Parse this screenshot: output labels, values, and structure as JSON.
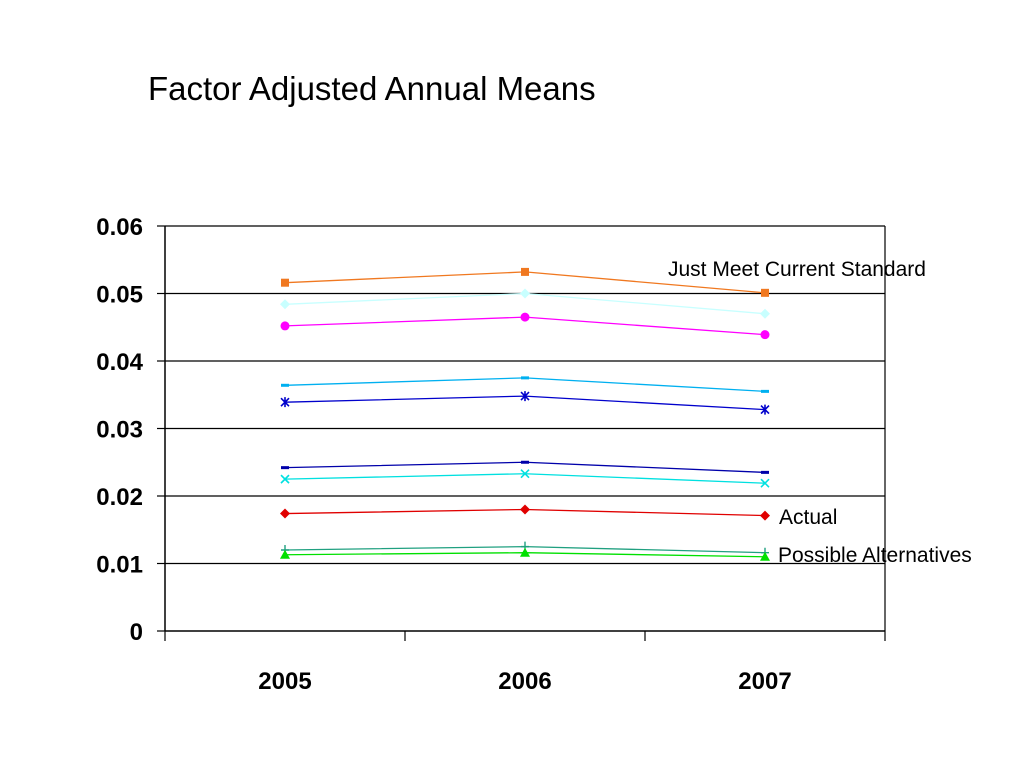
{
  "chart_data": {
    "type": "line",
    "title": "Factor Adjusted Annual Means",
    "xlabel": "",
    "ylabel": "",
    "categories": [
      "2005",
      "2006",
      "2007"
    ],
    "ylim": [
      0,
      0.06
    ],
    "yticks": [
      "0",
      "0.01",
      "0.02",
      "0.03",
      "0.04",
      "0.05",
      "0.06"
    ],
    "grid": "horizontal",
    "legend": "none",
    "series": [
      {
        "values": [
          0.0516,
          0.0532,
          0.0501
        ],
        "color": "#F07820",
        "marker": "square"
      },
      {
        "values": [
          0.0484,
          0.05,
          0.047
        ],
        "color": "#C8FFFF",
        "marker": "diamond"
      },
      {
        "values": [
          0.0452,
          0.0465,
          0.0439
        ],
        "color": "#FF00FF",
        "marker": "circle"
      },
      {
        "values": [
          0.0364,
          0.0375,
          0.0355
        ],
        "color": "#00B0F0",
        "marker": "dash"
      },
      {
        "values": [
          0.0339,
          0.0348,
          0.0328
        ],
        "color": "#0000CC",
        "marker": "star"
      },
      {
        "values": [
          0.0242,
          0.025,
          0.0235
        ],
        "color": "#0000AA",
        "marker": "dash"
      },
      {
        "values": [
          0.0225,
          0.0233,
          0.0219
        ],
        "color": "#00E0E0",
        "marker": "x"
      },
      {
        "values": [
          0.0174,
          0.018,
          0.0171
        ],
        "color": "#E00000",
        "marker": "diamond"
      },
      {
        "values": [
          0.012,
          0.0125,
          0.0116
        ],
        "color": "#20A080",
        "marker": "plus"
      },
      {
        "values": [
          0.0113,
          0.0116,
          0.011
        ],
        "color": "#00E000",
        "marker": "triangle"
      }
    ],
    "annotations": [
      {
        "text": "Just Meet Current Standard"
      },
      {
        "text": "Actual"
      },
      {
        "text": "Possible Alternatives"
      }
    ]
  }
}
